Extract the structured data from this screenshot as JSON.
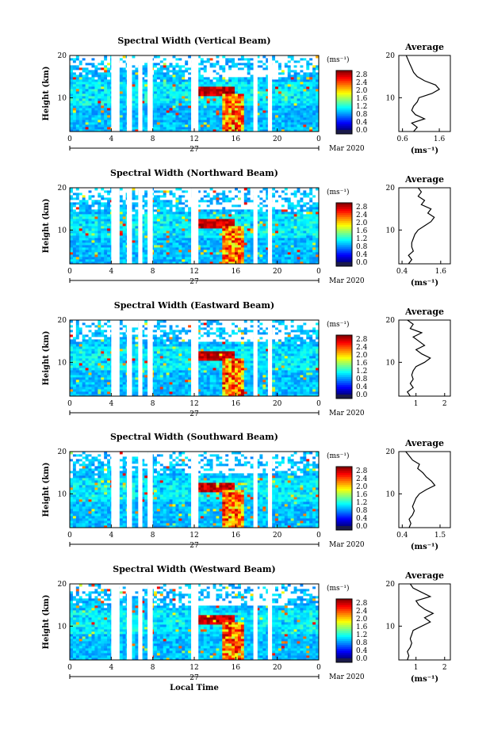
{
  "chart_data": [
    {
      "type": "heatmap",
      "title": "Spectral Width (Vertical Beam)",
      "ylabel": "Height (km)",
      "xticks": [
        "0",
        "4",
        "8",
        "12",
        "16",
        "20",
        "0"
      ],
      "yticks": [
        "10",
        "20"
      ],
      "xlim": [
        0,
        24
      ],
      "ylim": [
        2,
        20
      ],
      "day_label": "27",
      "month_label": "Mar 2020",
      "colorbar": {
        "unit": "(ms⁻¹)",
        "ticks": [
          "0.0",
          "0.4",
          "0.8",
          "1.2",
          "1.6",
          "2.0",
          "2.4",
          "2.8"
        ],
        "range": [
          0,
          3.0
        ]
      },
      "gaps": [
        [
          4.0,
          4.8
        ],
        [
          5.5,
          6.0
        ],
        [
          6.6,
          7.0
        ],
        [
          7.5,
          8.0
        ],
        [
          11.7,
          12.4
        ],
        [
          17.7,
          18.1
        ],
        [
          19.1,
          19.5
        ]
      ],
      "average": {
        "title": "Average",
        "unit": "(ms⁻¹)",
        "xticks": [
          "0.6",
          "1.6"
        ],
        "xlim": [
          0.5,
          1.9
        ],
        "yticks": [
          "10",
          "20"
        ],
        "profile": [
          [
            2,
            0.9
          ],
          [
            3,
            1.0
          ],
          [
            4,
            0.85
          ],
          [
            5,
            1.2
          ],
          [
            6,
            0.95
          ],
          [
            7,
            0.85
          ],
          [
            8,
            0.9
          ],
          [
            9,
            1.0
          ],
          [
            10,
            1.05
          ],
          [
            11,
            1.4
          ],
          [
            12,
            1.6
          ],
          [
            13,
            1.5
          ],
          [
            14,
            1.2
          ],
          [
            15,
            1.0
          ],
          [
            16,
            0.9
          ],
          [
            17,
            0.85
          ],
          [
            18,
            0.8
          ],
          [
            19,
            0.75
          ],
          [
            20,
            0.7
          ]
        ]
      }
    },
    {
      "type": "heatmap",
      "title": "Spectral Width (Northward Beam)",
      "ylabel": "Height (km)",
      "xticks": [
        "0",
        "4",
        "8",
        "12",
        "16",
        "20",
        "0"
      ],
      "yticks": [
        "10",
        "20"
      ],
      "xlim": [
        0,
        24
      ],
      "ylim": [
        2,
        20
      ],
      "day_label": "27",
      "month_label": "Mar 2020",
      "colorbar": {
        "unit": "(ms⁻¹)",
        "ticks": [
          "0.0",
          "0.4",
          "0.8",
          "1.2",
          "1.6",
          "2.0",
          "2.4",
          "2.8"
        ],
        "range": [
          0,
          3.0
        ]
      },
      "gaps": [
        [
          4.0,
          4.8
        ],
        [
          5.5,
          6.0
        ],
        [
          6.6,
          7.0
        ],
        [
          7.5,
          8.0
        ],
        [
          11.7,
          12.4
        ],
        [
          17.7,
          18.1
        ],
        [
          19.1,
          19.5
        ]
      ],
      "average": {
        "title": "Average",
        "unit": "(ms⁻¹)",
        "xticks": [
          "0.4",
          "1.6"
        ],
        "xlim": [
          0.3,
          1.9
        ],
        "yticks": [
          "10",
          "20"
        ],
        "profile": [
          [
            2,
            0.6
          ],
          [
            3,
            0.7
          ],
          [
            4,
            0.6
          ],
          [
            5,
            0.75
          ],
          [
            6,
            0.7
          ],
          [
            7,
            0.7
          ],
          [
            8,
            0.75
          ],
          [
            9,
            0.8
          ],
          [
            10,
            0.9
          ],
          [
            11,
            1.1
          ],
          [
            12,
            1.3
          ],
          [
            13,
            1.4
          ],
          [
            14,
            1.2
          ],
          [
            15,
            1.3
          ],
          [
            16,
            1.0
          ],
          [
            17,
            1.1
          ],
          [
            18,
            0.9
          ],
          [
            19,
            1.0
          ],
          [
            20,
            0.9
          ]
        ]
      }
    },
    {
      "type": "heatmap",
      "title": "Spectral Width (Eastward Beam)",
      "ylabel": "Height (km)",
      "xticks": [
        "0",
        "4",
        "8",
        "12",
        "16",
        "20",
        "0"
      ],
      "yticks": [
        "10",
        "20"
      ],
      "xlim": [
        0,
        24
      ],
      "ylim": [
        2,
        20
      ],
      "day_label": "27",
      "month_label": "Mar 2020",
      "colorbar": {
        "unit": "(ms⁻¹)",
        "ticks": [
          "0.0",
          "0.4",
          "0.8",
          "1.2",
          "1.6",
          "2.0",
          "2.4",
          "2.8"
        ],
        "range": [
          0,
          3.0
        ]
      },
      "gaps": [
        [
          4.0,
          4.8
        ],
        [
          5.5,
          6.0
        ],
        [
          6.6,
          7.0
        ],
        [
          7.5,
          8.0
        ],
        [
          11.7,
          12.4
        ],
        [
          17.7,
          18.1
        ],
        [
          19.1,
          19.5
        ]
      ],
      "average": {
        "title": "Average",
        "unit": "",
        "xticks": [
          "1",
          "2"
        ],
        "xlim": [
          0.4,
          2.2
        ],
        "yticks": [
          "10",
          "20"
        ],
        "profile": [
          [
            2,
            0.8
          ],
          [
            3,
            0.7
          ],
          [
            4,
            0.9
          ],
          [
            5,
            0.8
          ],
          [
            6,
            0.9
          ],
          [
            7,
            0.85
          ],
          [
            8,
            0.9
          ],
          [
            9,
            1.0
          ],
          [
            10,
            1.3
          ],
          [
            11,
            1.5
          ],
          [
            12,
            1.2
          ],
          [
            13,
            1.0
          ],
          [
            14,
            1.3
          ],
          [
            15,
            1.1
          ],
          [
            16,
            0.9
          ],
          [
            17,
            1.2
          ],
          [
            18,
            0.8
          ],
          [
            19,
            0.9
          ],
          [
            20,
            0.7
          ]
        ]
      }
    },
    {
      "type": "heatmap",
      "title": "Spectral Width (Southward Beam)",
      "ylabel": "Height (km)",
      "xticks": [
        "0",
        "4",
        "8",
        "12",
        "16",
        "20",
        "0"
      ],
      "yticks": [
        "10",
        "20"
      ],
      "xlim": [
        0,
        24
      ],
      "ylim": [
        2,
        20
      ],
      "day_label": "27",
      "month_label": "Mar 2020",
      "colorbar": {
        "unit": "(ms⁻¹)",
        "ticks": [
          "0.0",
          "0.4",
          "0.8",
          "1.2",
          "1.6",
          "2.0",
          "2.4",
          "2.8"
        ],
        "range": [
          0,
          3.0
        ]
      },
      "gaps": [
        [
          4.0,
          4.8
        ],
        [
          5.5,
          6.0
        ],
        [
          6.6,
          7.0
        ],
        [
          7.5,
          8.0
        ],
        [
          11.7,
          12.4
        ],
        [
          17.7,
          18.1
        ],
        [
          19.1,
          19.5
        ]
      ],
      "average": {
        "title": "Average",
        "unit": "(ms⁻¹)",
        "xticks": [
          "0.4",
          "1.5"
        ],
        "xlim": [
          0.3,
          1.8
        ],
        "yticks": [
          "10",
          "20"
        ],
        "profile": [
          [
            2,
            0.6
          ],
          [
            3,
            0.65
          ],
          [
            4,
            0.6
          ],
          [
            5,
            0.7
          ],
          [
            6,
            0.75
          ],
          [
            7,
            0.7
          ],
          [
            8,
            0.75
          ],
          [
            9,
            0.8
          ],
          [
            10,
            0.9
          ],
          [
            11,
            1.1
          ],
          [
            12,
            1.35
          ],
          [
            13,
            1.25
          ],
          [
            14,
            1.1
          ],
          [
            15,
            1.0
          ],
          [
            16,
            0.85
          ],
          [
            17,
            0.9
          ],
          [
            18,
            0.7
          ],
          [
            19,
            0.6
          ],
          [
            20,
            0.5
          ]
        ]
      }
    },
    {
      "type": "heatmap",
      "title": "Spectral Width (Westward Beam)",
      "ylabel": "Height (km)",
      "xticks": [
        "0",
        "4",
        "8",
        "12",
        "16",
        "20",
        "0"
      ],
      "yticks": [
        "10",
        "20"
      ],
      "xlim": [
        0,
        24
      ],
      "ylim": [
        2,
        20
      ],
      "day_label": "27",
      "month_label": "Mar 2020",
      "xlabel": "Local Time",
      "colorbar": {
        "unit": "(ms⁻¹)",
        "ticks": [
          "0.0",
          "0.4",
          "0.8",
          "1.2",
          "1.6",
          "2.0",
          "2.4",
          "2.8"
        ],
        "range": [
          0,
          3.0
        ]
      },
      "gaps": [
        [
          4.0,
          4.8
        ],
        [
          5.5,
          6.0
        ],
        [
          6.6,
          7.0
        ],
        [
          7.5,
          8.0
        ],
        [
          11.7,
          12.4
        ],
        [
          17.7,
          18.1
        ],
        [
          19.1,
          19.5
        ]
      ],
      "average": {
        "title": "Average",
        "unit": "(ms⁻¹)",
        "xticks": [
          "1",
          "2"
        ],
        "xlim": [
          0.4,
          2.2
        ],
        "yticks": [
          "10",
          "20"
        ],
        "profile": [
          [
            2,
            0.7
          ],
          [
            3,
            0.75
          ],
          [
            4,
            0.7
          ],
          [
            5,
            0.8
          ],
          [
            6,
            0.85
          ],
          [
            7,
            0.8
          ],
          [
            8,
            0.85
          ],
          [
            9,
            0.9
          ],
          [
            10,
            1.2
          ],
          [
            11,
            1.5
          ],
          [
            12,
            1.3
          ],
          [
            13,
            1.6
          ],
          [
            14,
            1.3
          ],
          [
            15,
            1.1
          ],
          [
            16,
            1.0
          ],
          [
            17,
            1.5
          ],
          [
            18,
            1.2
          ],
          [
            19,
            0.9
          ],
          [
            20,
            0.8
          ]
        ]
      }
    }
  ]
}
